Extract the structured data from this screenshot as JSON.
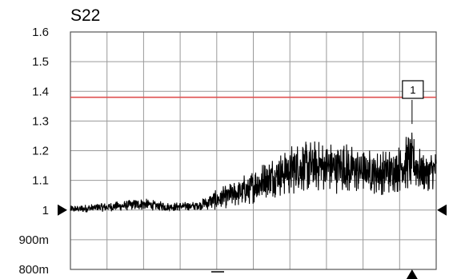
{
  "chart_data": {
    "type": "line",
    "title": "S22",
    "xlabel": "",
    "ylabel": "",
    "ylim": [
      0.8,
      1.6
    ],
    "yticks": [
      {
        "value": 1.6,
        "label": "1.6"
      },
      {
        "value": 1.5,
        "label": "1.5"
      },
      {
        "value": 1.4,
        "label": "1.4"
      },
      {
        "value": 1.3,
        "label": "1.3"
      },
      {
        "value": 1.2,
        "label": "1.2"
      },
      {
        "value": 1.1,
        "label": "1.1"
      },
      {
        "value": 1.0,
        "label": "1"
      },
      {
        "value": 0.9,
        "label": "900m"
      },
      {
        "value": 0.8,
        "label": "800m"
      }
    ],
    "x_divisions": 10,
    "grid": true,
    "reference_line": {
      "value": 1.38,
      "color": "#e05050"
    },
    "reference_marker": {
      "value": 1.0
    },
    "marker": {
      "label": "1",
      "x_fraction": 0.934,
      "value": 1.29
    },
    "trace_envelope": [
      {
        "x": 0.0,
        "low": 0.99,
        "high": 1.015
      },
      {
        "x": 0.1,
        "low": 0.995,
        "high": 1.025
      },
      {
        "x": 0.2,
        "low": 1.0,
        "high": 1.04
      },
      {
        "x": 0.27,
        "low": 0.995,
        "high": 1.025
      },
      {
        "x": 0.35,
        "low": 1.0,
        "high": 1.03
      },
      {
        "x": 0.4,
        "low": 1.0,
        "high": 1.07
      },
      {
        "x": 0.45,
        "low": 1.01,
        "high": 1.1
      },
      {
        "x": 0.5,
        "low": 1.02,
        "high": 1.14
      },
      {
        "x": 0.55,
        "low": 1.04,
        "high": 1.18
      },
      {
        "x": 0.6,
        "low": 1.05,
        "high": 1.22
      },
      {
        "x": 0.65,
        "low": 1.06,
        "high": 1.24
      },
      {
        "x": 0.7,
        "low": 1.06,
        "high": 1.23
      },
      {
        "x": 0.75,
        "low": 1.05,
        "high": 1.23
      },
      {
        "x": 0.8,
        "low": 1.06,
        "high": 1.21
      },
      {
        "x": 0.85,
        "low": 1.05,
        "high": 1.2
      },
      {
        "x": 0.9,
        "low": 1.06,
        "high": 1.22
      },
      {
        "x": 0.93,
        "low": 1.07,
        "high": 1.27
      },
      {
        "x": 0.96,
        "low": 1.06,
        "high": 1.2
      },
      {
        "x": 1.0,
        "low": 1.07,
        "high": 1.2
      }
    ],
    "trace_color": "#000000",
    "grid_color": "#9a9a9a"
  }
}
